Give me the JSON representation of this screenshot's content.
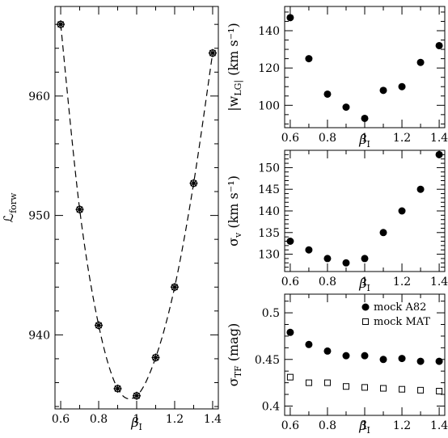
{
  "chart_data": [
    {
      "type": "scatter",
      "panel": "likelihood",
      "xlabel": "β_I",
      "ylabel": "ℒ_forw",
      "xlim": [
        0.57,
        1.43
      ],
      "ylim": [
        933.8,
        967.5
      ],
      "xticks": [
        0.6,
        0.8,
        1.0,
        1.2,
        1.4
      ],
      "xtick_labels": [
        "0.6",
        "0.8",
        "1",
        "1.2",
        "1.4"
      ],
      "yticks": [
        940,
        950,
        960
      ],
      "ytick_labels": [
        "940",
        "950",
        "960"
      ],
      "marker": "star",
      "fit_curve": "dashed",
      "x": [
        0.6,
        0.7,
        0.8,
        0.9,
        1.0,
        1.1,
        1.2,
        1.3,
        1.4
      ],
      "y": [
        966.0,
        950.5,
        940.8,
        935.5,
        934.9,
        938.1,
        944.0,
        952.7,
        963.6
      ]
    },
    {
      "type": "scatter",
      "panel": "wLG",
      "xlabel": "β_I",
      "ylabel": "|w_LG| (km s⁻¹)",
      "xlim": [
        0.57,
        1.43
      ],
      "ylim": [
        88,
        153
      ],
      "xticks": [
        0.6,
        0.8,
        1.0,
        1.2,
        1.4
      ],
      "xtick_labels": [
        "0.6",
        "0.8",
        "1",
        "1.2",
        "1.4"
      ],
      "yticks": [
        100,
        120,
        140
      ],
      "ytick_labels": [
        "100",
        "120",
        "140"
      ],
      "x": [
        0.6,
        0.7,
        0.8,
        0.9,
        1.0,
        1.1,
        1.2,
        1.3,
        1.4
      ],
      "y": [
        147,
        125,
        106,
        99,
        93,
        108,
        110,
        123,
        132
      ]
    },
    {
      "type": "scatter",
      "panel": "sigma_v",
      "xlabel": "β_I",
      "ylabel": "σ_v (km s⁻¹)",
      "xlim": [
        0.57,
        1.43
      ],
      "ylim": [
        126,
        154
      ],
      "xticks": [
        0.6,
        0.8,
        1.0,
        1.2,
        1.4
      ],
      "xtick_labels": [
        "0.6",
        "0.8",
        "1",
        "1.2",
        "1.4"
      ],
      "yticks": [
        130,
        135,
        140,
        145,
        150
      ],
      "ytick_labels": [
        "130",
        "135",
        "140",
        "145",
        "150"
      ],
      "x": [
        0.6,
        0.7,
        0.8,
        0.9,
        1.0,
        1.1,
        1.2,
        1.3,
        1.4
      ],
      "y": [
        133,
        131,
        129,
        128,
        129,
        135,
        140,
        145,
        153
      ]
    },
    {
      "type": "scatter",
      "panel": "sigma_TF",
      "xlabel": "β_I",
      "ylabel": "σ_TF (mag)",
      "xlim": [
        0.57,
        1.43
      ],
      "ylim": [
        0.39,
        0.52
      ],
      "xticks": [
        0.6,
        0.8,
        1.0,
        1.2,
        1.4
      ],
      "xtick_labels": [
        "0.6",
        "0.8",
        "1",
        "1.2",
        "1.4"
      ],
      "yticks": [
        0.4,
        0.45,
        0.5
      ],
      "ytick_labels": [
        "0.4",
        "0.45",
        "0.5"
      ],
      "legend_position": "top-right",
      "series": [
        {
          "name": "mock A82",
          "marker": "filled-circle",
          "x": [
            0.6,
            0.7,
            0.8,
            0.9,
            1.0,
            1.1,
            1.2,
            1.3,
            1.4
          ],
          "y": [
            0.479,
            0.466,
            0.459,
            0.454,
            0.454,
            0.45,
            0.451,
            0.448,
            0.448
          ]
        },
        {
          "name": "mock MAT",
          "marker": "open-square",
          "x": [
            0.6,
            0.7,
            0.8,
            0.9,
            1.0,
            1.1,
            1.2,
            1.3,
            1.4
          ],
          "y": [
            0.431,
            0.425,
            0.425,
            0.421,
            0.42,
            0.419,
            0.418,
            0.417,
            0.416
          ]
        }
      ]
    }
  ]
}
